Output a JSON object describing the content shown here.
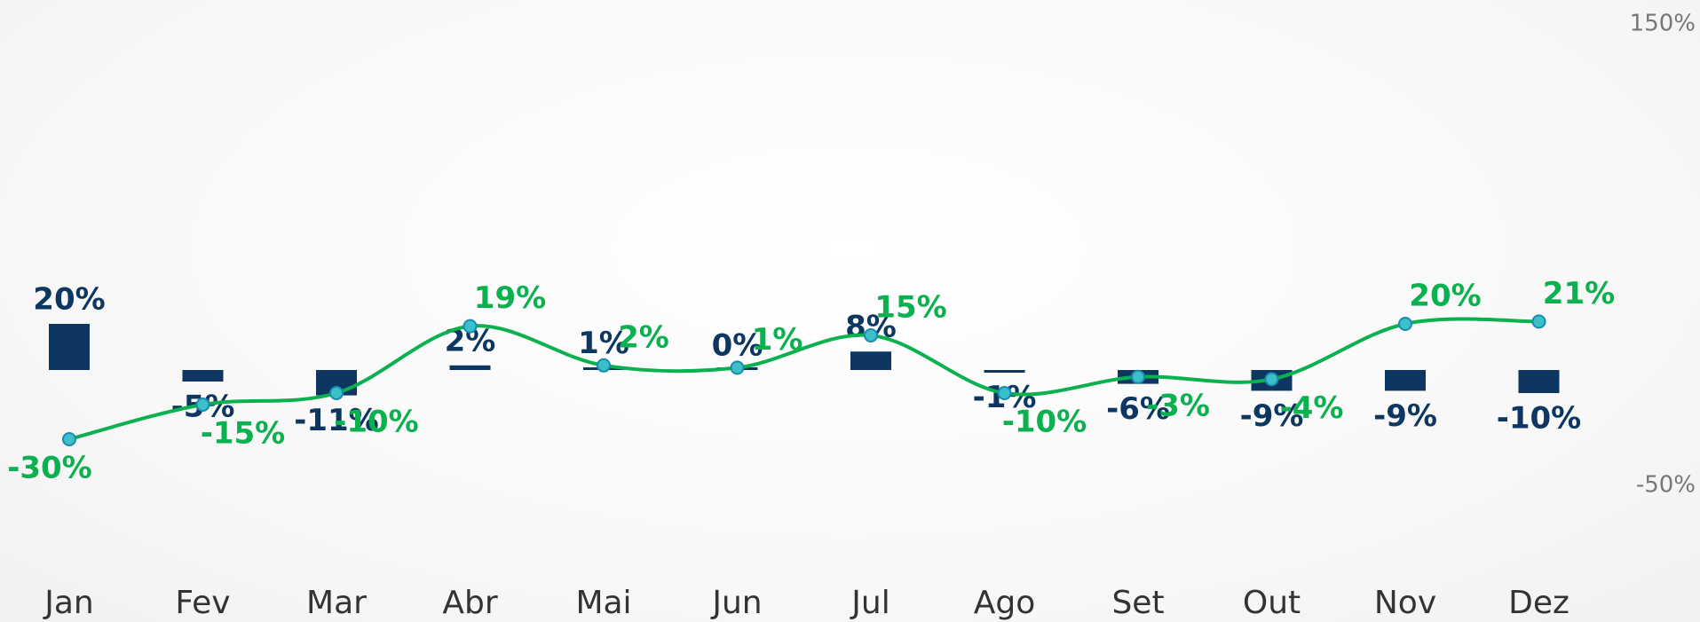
{
  "chart_data": {
    "type": "bar_line",
    "categories": [
      "Jan",
      "Fev",
      "Mar",
      "Abr",
      "Mai",
      "Jun",
      "Jul",
      "Ago",
      "Set",
      "Out",
      "Nov",
      "Dez"
    ],
    "series": [
      {
        "type": "bar",
        "color": "#0d3660",
        "values": [
          20,
          -5,
          -11,
          2,
          1,
          0,
          8,
          -1,
          -6,
          -9,
          -9,
          -10
        ],
        "value_labels": [
          "20%",
          "-5%",
          "-11%",
          "2%",
          "1%",
          "0%",
          "8%",
          "-1%",
          "-6%",
          "-9%",
          "-9%",
          "-10%"
        ]
      },
      {
        "type": "line",
        "color": "#0bb04f",
        "values": [
          -30,
          -15,
          -10,
          19,
          2,
          1,
          15,
          -10,
          -3,
          -4,
          20,
          21
        ],
        "value_labels": [
          "-30%",
          "-15%",
          "-10%",
          "19%",
          "2%",
          "1%",
          "15%",
          "-10%",
          "-3%",
          "-4%",
          "20%",
          "21%"
        ]
      }
    ],
    "ylim": [
      -50,
      150
    ],
    "yticks": [
      {
        "value": -50,
        "label": "-50%"
      },
      {
        "value": 150,
        "label": "150%"
      }
    ]
  }
}
